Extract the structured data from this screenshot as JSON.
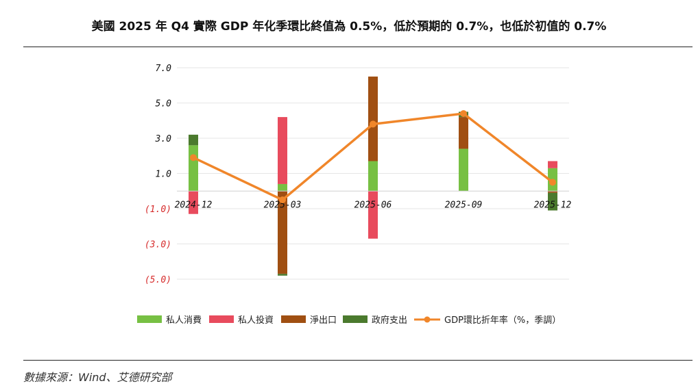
{
  "header": {
    "title": "美國 2025 年 Q4 實際 GDP 年化季環比終值為 0.5%，低於預期的 0.7%，也低於初值的 0.7%"
  },
  "footer": {
    "source": "數據來源：Wind、艾德研究部"
  },
  "colors": {
    "consumption": "#77c043",
    "investment": "#e84b5d",
    "net_exports": "#a04f12",
    "government": "#4b7a2e",
    "gdp_line": "#f0862a",
    "negative_tick": "#d62b2b",
    "positive_tick": "#111111"
  },
  "chart_data": {
    "type": "bar",
    "stacked": true,
    "title": "",
    "xlabel": "",
    "ylabel": "",
    "ylim": [
      -5,
      7
    ],
    "yticks": [
      7,
      5,
      3,
      1,
      -1,
      -3,
      -5
    ],
    "ytick_labels": [
      "7.0",
      "5.0",
      "3.0",
      "1.0",
      "(1.0)",
      "(3.0)",
      "(5.0)"
    ],
    "grid": true,
    "legend_position": "bottom",
    "categories": [
      "2024-12",
      "2025-03",
      "2025-06",
      "2025-09",
      "2025-12"
    ],
    "series": [
      {
        "name": "私人消費",
        "key": "consumption",
        "type": "bar",
        "values": [
          2.6,
          0.4,
          1.7,
          2.4,
          1.3
        ]
      },
      {
        "name": "私人投資",
        "key": "investment",
        "type": "bar",
        "values": [
          -1.3,
          3.8,
          -2.7,
          0.0,
          0.4
        ]
      },
      {
        "name": "淨出口",
        "key": "net_exports",
        "type": "bar",
        "values": [
          0.0,
          -4.7,
          4.8,
          1.8,
          -0.1
        ]
      },
      {
        "name": "政府支出",
        "key": "government",
        "type": "bar",
        "values": [
          0.6,
          -0.1,
          0.0,
          0.3,
          -1.0
        ]
      },
      {
        "name": "GDP環比折年率（%，季調）",
        "key": "gdp_line",
        "type": "line",
        "values": [
          1.9,
          -0.5,
          3.8,
          4.4,
          0.5
        ]
      }
    ]
  }
}
